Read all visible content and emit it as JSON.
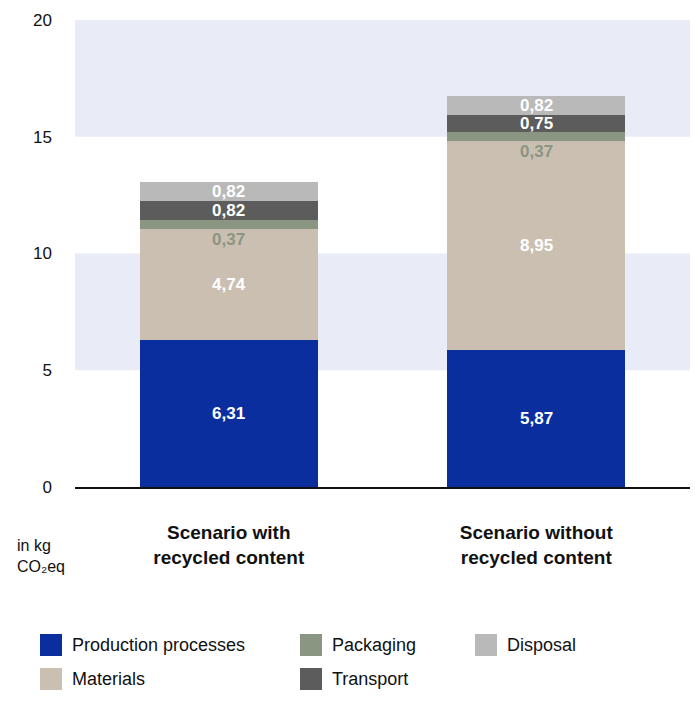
{
  "chart_data": {
    "type": "bar",
    "stacked": true,
    "categories": [
      "Scenario with recycled content",
      "Scenario without recycled content"
    ],
    "ylabel": "in kg CO₂eq",
    "ylim": [
      0,
      20
    ],
    "yticks": [
      0,
      5,
      10,
      15,
      20
    ],
    "grid": false,
    "legend": "bottom",
    "data_labels": true,
    "series": [
      {
        "name": "Production processes",
        "color": "#0b2e9f",
        "values": [
          6.31,
          5.87
        ],
        "value_labels": [
          "6,31",
          "5,87"
        ]
      },
      {
        "name": "Materials",
        "color": "#cbbfb2",
        "values": [
          4.74,
          8.95
        ],
        "value_labels": [
          "4,74",
          "8,95"
        ]
      },
      {
        "name": "Packaging",
        "color": "#8a9682",
        "values": [
          0.37,
          0.37
        ],
        "value_labels": [
          "0,37",
          "0,37"
        ]
      },
      {
        "name": "Transport",
        "color": "#5c5c5c",
        "values": [
          0.82,
          0.75
        ],
        "value_labels": [
          "0,82",
          "0,75"
        ]
      },
      {
        "name": "Disposal",
        "color": "#b9b9b9",
        "values": [
          0.82,
          0.82
        ],
        "value_labels": [
          "0,82",
          "0,82"
        ]
      }
    ]
  }
}
